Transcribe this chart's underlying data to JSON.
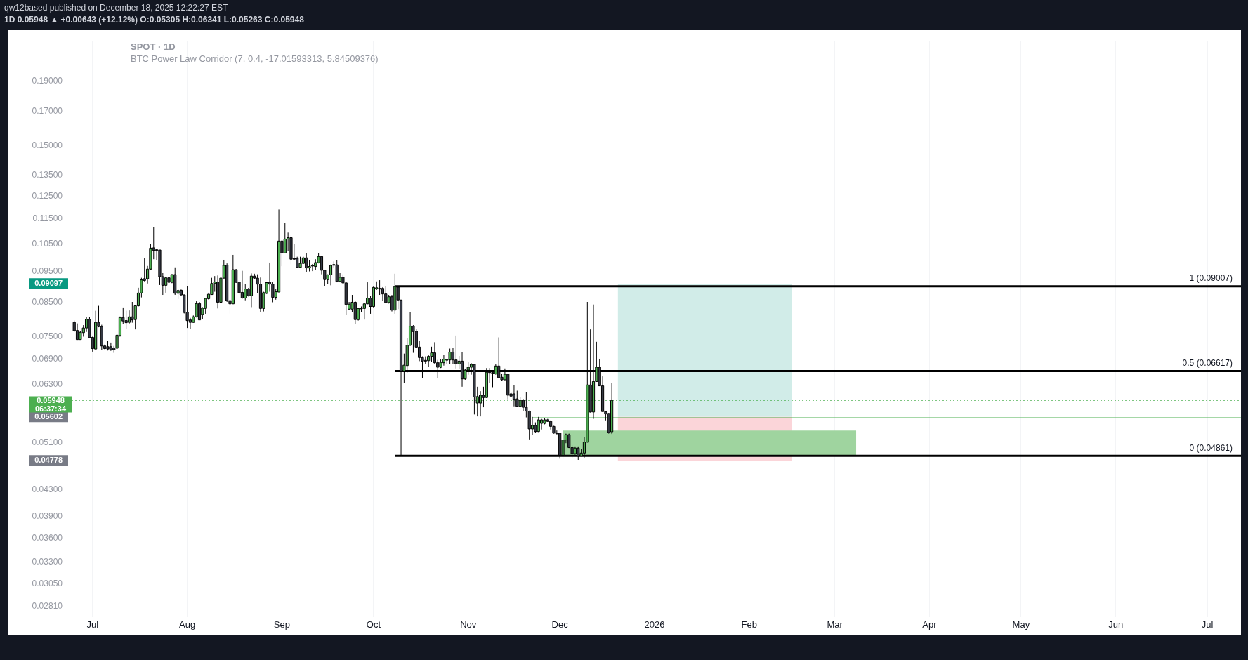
{
  "chart_data": {
    "type": "candlestick",
    "title": "qw12based published on December 18, 2025 12:22:27 EST",
    "subtitle": "1D 0.05948 ▲ +0.00643 (+12.12%) O:0.05305 H:0.06341 L:0.05263 C:0.05948",
    "x": [
      "2025-06-25",
      "2025-06-26",
      "2025-06-27",
      "2025-06-28",
      "2025-06-29",
      "2025-06-30",
      "2025-07-01",
      "2025-07-02",
      "2025-07-03",
      "2025-07-04",
      "2025-07-05",
      "2025-07-06",
      "2025-07-07",
      "2025-07-08",
      "2025-07-09",
      "2025-07-10",
      "2025-07-11",
      "2025-07-12",
      "2025-07-13",
      "2025-07-14",
      "2025-07-15",
      "2025-07-16",
      "2025-07-17",
      "2025-07-18",
      "2025-07-19",
      "2025-07-20",
      "2025-07-21",
      "2025-07-22",
      "2025-07-23",
      "2025-07-24",
      "2025-07-25",
      "2025-07-26",
      "2025-07-27",
      "2025-07-28",
      "2025-07-29",
      "2025-07-30",
      "2025-07-31",
      "2025-08-01",
      "2025-08-02",
      "2025-08-03",
      "2025-08-04",
      "2025-08-05",
      "2025-08-06",
      "2025-08-07",
      "2025-08-08",
      "2025-08-09",
      "2025-08-10",
      "2025-08-11",
      "2025-08-12",
      "2025-08-13",
      "2025-08-14",
      "2025-08-15",
      "2025-08-16",
      "2025-08-17",
      "2025-08-18",
      "2025-08-19",
      "2025-08-20",
      "2025-08-21",
      "2025-08-22",
      "2025-08-23",
      "2025-08-24",
      "2025-08-25",
      "2025-08-26",
      "2025-08-27",
      "2025-08-28",
      "2025-08-29",
      "2025-08-30",
      "2025-08-31",
      "2025-09-01",
      "2025-09-02",
      "2025-09-03",
      "2025-09-04",
      "2025-09-05",
      "2025-09-06",
      "2025-09-07",
      "2025-09-08",
      "2025-09-09",
      "2025-09-10",
      "2025-09-11",
      "2025-09-12",
      "2025-09-13",
      "2025-09-14",
      "2025-09-15",
      "2025-09-16",
      "2025-09-17",
      "2025-09-18",
      "2025-09-19",
      "2025-09-20",
      "2025-09-21",
      "2025-09-22",
      "2025-09-23",
      "2025-09-24",
      "2025-09-25",
      "2025-09-26",
      "2025-09-27",
      "2025-09-28",
      "2025-09-29",
      "2025-09-30",
      "2025-10-01",
      "2025-10-02",
      "2025-10-03",
      "2025-10-04",
      "2025-10-05",
      "2025-10-06",
      "2025-10-07",
      "2025-10-08",
      "2025-10-09",
      "2025-10-10",
      "2025-10-11",
      "2025-10-12",
      "2025-10-13",
      "2025-10-14",
      "2025-10-15",
      "2025-10-16",
      "2025-10-17",
      "2025-10-18",
      "2025-10-19",
      "2025-10-20",
      "2025-10-21",
      "2025-10-22",
      "2025-10-23",
      "2025-10-24",
      "2025-10-25",
      "2025-10-26",
      "2025-10-27",
      "2025-10-28",
      "2025-10-29",
      "2025-10-30",
      "2025-10-31",
      "2025-11-01",
      "2025-11-02",
      "2025-11-03",
      "2025-11-04",
      "2025-11-05",
      "2025-11-06",
      "2025-11-07",
      "2025-11-08",
      "2025-11-09",
      "2025-11-10",
      "2025-11-11",
      "2025-11-12",
      "2025-11-13",
      "2025-11-14",
      "2025-11-15",
      "2025-11-16",
      "2025-11-17",
      "2025-11-18",
      "2025-11-19",
      "2025-11-20",
      "2025-11-21",
      "2025-11-22",
      "2025-11-23",
      "2025-11-24",
      "2025-11-25",
      "2025-11-26",
      "2025-11-27",
      "2025-11-28",
      "2025-11-29",
      "2025-11-30",
      "2025-12-01",
      "2025-12-02",
      "2025-12-03",
      "2025-12-04",
      "2025-12-05",
      "2025-12-06",
      "2025-12-07",
      "2025-12-08",
      "2025-12-09",
      "2025-12-10",
      "2025-12-11",
      "2025-12-12",
      "2025-12-13",
      "2025-12-14",
      "2025-12-15",
      "2025-12-16",
      "2025-12-17",
      "2025-12-18"
    ],
    "ohlc": [
      [
        0.079,
        0.0795,
        0.0763,
        0.0766
      ],
      [
        0.0767,
        0.0787,
        0.0742,
        0.0742
      ],
      [
        0.0742,
        0.0766,
        0.0742,
        0.0762
      ],
      [
        0.0761,
        0.0782,
        0.075,
        0.0774
      ],
      [
        0.0774,
        0.0806,
        0.0763,
        0.0799
      ],
      [
        0.0799,
        0.0805,
        0.0746,
        0.0747
      ],
      [
        0.0748,
        0.075,
        0.071,
        0.0718
      ],
      [
        0.0717,
        0.0824,
        0.0716,
        0.079
      ],
      [
        0.079,
        0.0839,
        0.0776,
        0.0778
      ],
      [
        0.0778,
        0.0783,
        0.0715,
        0.0725
      ],
      [
        0.0725,
        0.0729,
        0.0716,
        0.0718
      ],
      [
        0.0723,
        0.0739,
        0.0713,
        0.0717
      ],
      [
        0.0723,
        0.0734,
        0.0712,
        0.0715
      ],
      [
        0.072,
        0.0725,
        0.0707,
        0.0715
      ],
      [
        0.0719,
        0.0756,
        0.0718,
        0.0754
      ],
      [
        0.0753,
        0.0807,
        0.075,
        0.0804
      ],
      [
        0.0804,
        0.0834,
        0.0785,
        0.0794
      ],
      [
        0.0795,
        0.0824,
        0.0772,
        0.0789
      ],
      [
        0.079,
        0.0825,
        0.0785,
        0.0806
      ],
      [
        0.0806,
        0.0851,
        0.0789,
        0.0797
      ],
      [
        0.0798,
        0.0839,
        0.077,
        0.0839
      ],
      [
        0.0839,
        0.0896,
        0.0837,
        0.0879
      ],
      [
        0.0879,
        0.0929,
        0.0865,
        0.0922
      ],
      [
        0.0926,
        0.0997,
        0.0917,
        0.092
      ],
      [
        0.0926,
        0.097,
        0.091,
        0.0959
      ],
      [
        0.0959,
        0.1052,
        0.0955,
        0.1035
      ],
      [
        0.1036,
        0.1117,
        0.0994,
        0.1027
      ],
      [
        0.1029,
        0.1031,
        0.099,
        0.1027
      ],
      [
        0.1028,
        0.1028,
        0.0905,
        0.0933
      ],
      [
        0.0933,
        0.0945,
        0.0873,
        0.0904
      ],
      [
        0.0904,
        0.0933,
        0.088,
        0.0929
      ],
      [
        0.0929,
        0.0931,
        0.0911,
        0.0914
      ],
      [
        0.0914,
        0.0941,
        0.0911,
        0.094
      ],
      [
        0.094,
        0.0965,
        0.0873,
        0.0878
      ],
      [
        0.0878,
        0.0893,
        0.086,
        0.0887
      ],
      [
        0.0888,
        0.089,
        0.0871,
        0.0873
      ],
      [
        0.0873,
        0.0874,
        0.0816,
        0.0819
      ],
      [
        0.082,
        0.0902,
        0.0774,
        0.0795
      ],
      [
        0.0797,
        0.0803,
        0.0772,
        0.079
      ],
      [
        0.079,
        0.081,
        0.0789,
        0.0806
      ],
      [
        0.0806,
        0.0853,
        0.0804,
        0.0846
      ],
      [
        0.0846,
        0.0851,
        0.0797,
        0.0797
      ],
      [
        0.0813,
        0.0835,
        0.08,
        0.0832
      ],
      [
        0.0831,
        0.0864,
        0.0815,
        0.0862
      ],
      [
        0.0861,
        0.088,
        0.0858,
        0.0875
      ],
      [
        0.0874,
        0.0929,
        0.0873,
        0.091
      ],
      [
        0.091,
        0.0935,
        0.0883,
        0.0915
      ],
      [
        0.0915,
        0.0937,
        0.0831,
        0.085
      ],
      [
        0.085,
        0.0931,
        0.0849,
        0.0928
      ],
      [
        0.0928,
        0.0992,
        0.0927,
        0.0972
      ],
      [
        0.0973,
        0.0979,
        0.0851,
        0.0855
      ],
      [
        0.0855,
        0.0858,
        0.0815,
        0.0845
      ],
      [
        0.0845,
        0.101,
        0.0845,
        0.0957
      ],
      [
        0.0957,
        0.0959,
        0.0912,
        0.0914
      ],
      [
        0.0915,
        0.0917,
        0.0874,
        0.088
      ],
      [
        0.0881,
        0.0953,
        0.0861,
        0.0863
      ],
      [
        0.0863,
        0.0908,
        0.0856,
        0.0892
      ],
      [
        0.0892,
        0.0895,
        0.0868,
        0.087
      ],
      [
        0.087,
        0.0944,
        0.0835,
        0.0935
      ],
      [
        0.0935,
        0.0943,
        0.0925,
        0.0928
      ],
      [
        0.0928,
        0.0941,
        0.0878,
        0.0908
      ],
      [
        0.0908,
        0.093,
        0.0821,
        0.0831
      ],
      [
        0.0831,
        0.0883,
        0.0822,
        0.088
      ],
      [
        0.0878,
        0.0916,
        0.0876,
        0.0913
      ],
      [
        0.0914,
        0.0982,
        0.0883,
        0.0908
      ],
      [
        0.0908,
        0.0914,
        0.085,
        0.0865
      ],
      [
        0.0865,
        0.0892,
        0.0858,
        0.0883
      ],
      [
        0.0882,
        0.1191,
        0.0882,
        0.1062
      ],
      [
        0.1062,
        0.1064,
        0.0969,
        0.1017
      ],
      [
        0.1017,
        0.1134,
        0.1016,
        0.107
      ],
      [
        0.107,
        0.1095,
        0.1024,
        0.1075
      ],
      [
        0.1075,
        0.1086,
        0.0976,
        0.0994
      ],
      [
        0.0997,
        0.1052,
        0.099,
        0.0994
      ],
      [
        0.0997,
        0.1003,
        0.0963,
        0.0965
      ],
      [
        0.0965,
        0.1003,
        0.0963,
        0.0979
      ],
      [
        0.0979,
        0.1003,
        0.0978,
        0.0999
      ],
      [
        0.0999,
        0.1016,
        0.0949,
        0.0963
      ],
      [
        0.0963,
        0.0992,
        0.0951,
        0.0968
      ],
      [
        0.097,
        0.0977,
        0.0952,
        0.0972
      ],
      [
        0.0968,
        0.0994,
        0.0957,
        0.0982
      ],
      [
        0.0981,
        0.1017,
        0.0979,
        0.1004
      ],
      [
        0.1004,
        0.1007,
        0.0941,
        0.0955
      ],
      [
        0.0955,
        0.0955,
        0.0902,
        0.0923
      ],
      [
        0.0923,
        0.0941,
        0.0908,
        0.0939
      ],
      [
        0.0939,
        0.0975,
        0.0904,
        0.0972
      ],
      [
        0.0973,
        0.0986,
        0.0965,
        0.0975
      ],
      [
        0.0974,
        0.099,
        0.0914,
        0.0917
      ],
      [
        0.0917,
        0.0945,
        0.0914,
        0.0931
      ],
      [
        0.0931,
        0.0941,
        0.0911,
        0.0912
      ],
      [
        0.0912,
        0.0914,
        0.0812,
        0.0843
      ],
      [
        0.0829,
        0.0851,
        0.0827,
        0.0844
      ],
      [
        0.0829,
        0.0873,
        0.0819,
        0.085
      ],
      [
        0.085,
        0.0855,
        0.0785,
        0.0798
      ],
      [
        0.0798,
        0.0833,
        0.0795,
        0.0831
      ],
      [
        0.0832,
        0.0837,
        0.0819,
        0.083
      ],
      [
        0.0831,
        0.0847,
        0.0798,
        0.0845
      ],
      [
        0.0845,
        0.0914,
        0.0844,
        0.0863
      ],
      [
        0.0863,
        0.0869,
        0.0815,
        0.0837
      ],
      [
        0.0837,
        0.0902,
        0.0833,
        0.0897
      ],
      [
        0.0892,
        0.0917,
        0.0889,
        0.0896
      ],
      [
        0.0894,
        0.0921,
        0.0873,
        0.0892
      ],
      [
        0.0894,
        0.0898,
        0.0855,
        0.0876
      ],
      [
        0.0876,
        0.0902,
        0.0847,
        0.0849
      ],
      [
        0.0849,
        0.0873,
        0.0846,
        0.0867
      ],
      [
        0.0867,
        0.0873,
        0.0822,
        0.0826
      ],
      [
        0.0826,
        0.0943,
        0.0815,
        0.09
      ],
      [
        0.0898,
        0.0898,
        0.0829,
        0.0857
      ],
      [
        0.0857,
        0.0857,
        0.0487,
        0.0662
      ],
      [
        0.0662,
        0.0705,
        0.0633,
        0.0676
      ],
      [
        0.0675,
        0.0747,
        0.0658,
        0.0727
      ],
      [
        0.0727,
        0.0821,
        0.0725,
        0.0779
      ],
      [
        0.0779,
        0.0782,
        0.0707,
        0.0764
      ],
      [
        0.0765,
        0.0772,
        0.072,
        0.0722
      ],
      [
        0.0722,
        0.0738,
        0.0686,
        0.0695
      ],
      [
        0.0695,
        0.0698,
        0.0645,
        0.0686
      ],
      [
        0.0688,
        0.0698,
        0.0678,
        0.0686
      ],
      [
        0.0687,
        0.0701,
        0.0672,
        0.0698
      ],
      [
        0.0698,
        0.0723,
        0.0684,
        0.0707
      ],
      [
        0.0707,
        0.0735,
        0.0679,
        0.0682
      ],
      [
        0.0682,
        0.0689,
        0.0645,
        0.0671
      ],
      [
        0.0671,
        0.069,
        0.0669,
        0.0683
      ],
      [
        0.0682,
        0.0701,
        0.0675,
        0.0691
      ],
      [
        0.0689,
        0.069,
        0.0679,
        0.069
      ],
      [
        0.0689,
        0.0718,
        0.0679,
        0.0709
      ],
      [
        0.0709,
        0.072,
        0.0678,
        0.0689
      ],
      [
        0.0689,
        0.0753,
        0.0668,
        0.0679
      ],
      [
        0.0679,
        0.0699,
        0.0667,
        0.0686
      ],
      [
        0.0686,
        0.0709,
        0.0625,
        0.0643
      ],
      [
        0.0643,
        0.0667,
        0.0641,
        0.0664
      ],
      [
        0.0664,
        0.0683,
        0.0653,
        0.0671
      ],
      [
        0.0671,
        0.0681,
        0.0653,
        0.0678
      ],
      [
        0.0678,
        0.0679,
        0.0565,
        0.0602
      ],
      [
        0.0589,
        0.0625,
        0.0561,
        0.0603
      ],
      [
        0.0589,
        0.0615,
        0.0561,
        0.0606
      ],
      [
        0.0606,
        0.0625,
        0.058,
        0.0601
      ],
      [
        0.0601,
        0.0669,
        0.06,
        0.0659
      ],
      [
        0.066,
        0.0669,
        0.0633,
        0.0658
      ],
      [
        0.0658,
        0.0661,
        0.0624,
        0.0657
      ],
      [
        0.0655,
        0.0678,
        0.0653,
        0.0674
      ],
      [
        0.0674,
        0.0748,
        0.0645,
        0.0646
      ],
      [
        0.0647,
        0.0655,
        0.0639,
        0.0641
      ],
      [
        0.0641,
        0.0668,
        0.064,
        0.0654
      ],
      [
        0.0654,
        0.0655,
        0.0597,
        0.0606
      ],
      [
        0.0609,
        0.0612,
        0.0604,
        0.0604
      ],
      [
        0.0609,
        0.0628,
        0.0582,
        0.0597
      ],
      [
        0.0598,
        0.0616,
        0.0581,
        0.0582
      ],
      [
        0.0582,
        0.0602,
        0.058,
        0.0595
      ],
      [
        0.0595,
        0.0598,
        0.0572,
        0.058
      ],
      [
        0.058,
        0.0613,
        0.0559,
        0.0572
      ],
      [
        0.0572,
        0.0573,
        0.0516,
        0.0536
      ],
      [
        0.0536,
        0.056,
        0.0524,
        0.0543
      ],
      [
        0.0543,
        0.0549,
        0.0529,
        0.0531
      ],
      [
        0.0531,
        0.056,
        0.053,
        0.0554
      ],
      [
        0.0547,
        0.0556,
        0.0535,
        0.0554
      ],
      [
        0.0547,
        0.0558,
        0.0545,
        0.0554
      ],
      [
        0.0554,
        0.0556,
        0.055,
        0.0551
      ],
      [
        0.0551,
        0.0553,
        0.0535,
        0.0541
      ],
      [
        0.0541,
        0.0542,
        0.0527,
        0.0528
      ],
      [
        0.0528,
        0.0533,
        0.0526,
        0.0527
      ],
      [
        0.0528,
        0.0529,
        0.0481,
        0.0487
      ],
      [
        0.0487,
        0.0516,
        0.048,
        0.0515
      ],
      [
        0.0515,
        0.0527,
        0.0509,
        0.0525
      ],
      [
        0.0525,
        0.0527,
        0.05,
        0.0501
      ],
      [
        0.0501,
        0.0505,
        0.0483,
        0.049
      ],
      [
        0.049,
        0.0503,
        0.0488,
        0.05
      ],
      [
        0.05,
        0.0503,
        0.0479,
        0.0486
      ],
      [
        0.0486,
        0.0498,
        0.0485,
        0.0491
      ],
      [
        0.0491,
        0.052,
        0.0483,
        0.0511
      ],
      [
        0.0511,
        0.0851,
        0.051,
        0.0629
      ],
      [
        0.0629,
        0.077,
        0.0569,
        0.057
      ],
      [
        0.057,
        0.0843,
        0.0556,
        0.0637
      ],
      [
        0.0637,
        0.0736,
        0.0636,
        0.0671
      ],
      [
        0.0671,
        0.0692,
        0.0627,
        0.0627
      ],
      [
        0.0627,
        0.0649,
        0.0571,
        0.0571
      ],
      [
        0.0571,
        0.0572,
        0.0553,
        0.0566
      ],
      [
        0.0567,
        0.0568,
        0.0527,
        0.0529
      ],
      [
        0.05305,
        0.06341,
        0.05263,
        0.05948
      ]
    ],
    "xlim": [
      "2025-06-23",
      "2026-07-12"
    ],
    "xticks": [
      {
        "value": "2025-07-01",
        "label": "Jul"
      },
      {
        "value": "2025-08-01",
        "label": "Aug"
      },
      {
        "value": "2025-09-01",
        "label": "Sep"
      },
      {
        "value": "2025-10-01",
        "label": "Oct"
      },
      {
        "value": "2025-11-01",
        "label": "Nov"
      },
      {
        "value": "2025-12-01",
        "label": "Dec"
      },
      {
        "value": "2026-01-01",
        "label": "2026"
      },
      {
        "value": "2026-02-01",
        "label": "Feb"
      },
      {
        "value": "2026-03-01",
        "label": "Mar"
      },
      {
        "value": "2026-04-01",
        "label": "Apr"
      },
      {
        "value": "2026-05-01",
        "label": "May"
      },
      {
        "value": "2026-06-01",
        "label": "Jun"
      },
      {
        "value": "2026-07-01",
        "label": "Jul"
      }
    ],
    "ylim": [
      0.027,
      0.22
    ],
    "yticks": [
      {
        "value": 0.19,
        "label": "0.19000"
      },
      {
        "value": 0.17,
        "label": "0.17000"
      },
      {
        "value": 0.15,
        "label": "0.15000"
      },
      {
        "value": 0.135,
        "label": "0.13500"
      },
      {
        "value": 0.125,
        "label": "0.12500"
      },
      {
        "value": 0.115,
        "label": "0.11500"
      },
      {
        "value": 0.105,
        "label": "0.10500"
      },
      {
        "value": 0.095,
        "label": "0.09500"
      },
      {
        "value": 0.09097,
        "label": "0.09097"
      },
      {
        "value": 0.085,
        "label": "0.08500"
      },
      {
        "value": 0.075,
        "label": "0.07500"
      },
      {
        "value": 0.069,
        "label": "0.06900"
      },
      {
        "value": 0.063,
        "label": "0.06300"
      },
      {
        "value": 0.05602,
        "label": "0.05602"
      },
      {
        "value": 0.051,
        "label": "0.05100"
      },
      {
        "value": 0.04778,
        "label": "0.04778"
      },
      {
        "value": 0.043,
        "label": "0.04300"
      },
      {
        "value": 0.039,
        "label": "0.03900"
      },
      {
        "value": 0.036,
        "label": "0.03600"
      },
      {
        "value": 0.033,
        "label": "0.03300"
      },
      {
        "value": 0.0305,
        "label": "0.03050"
      },
      {
        "value": 0.0281,
        "label": "0.02810"
      }
    ],
    "log": true,
    "grid": "x",
    "series": [
      {
        "type": "area",
        "color": "#d1ece8",
        "x": [
          "2025-12-20",
          "2025-12-20",
          "2026-02-15",
          "2026-02-15"
        ],
        "values": [
          0.05602,
          0.09097,
          0.09097,
          0.05602
        ]
      },
      {
        "type": "area",
        "color": "#fbd5d9",
        "x": [
          "2025-12-20",
          "2025-12-20",
          "2026-02-15",
          "2026-02-15"
        ],
        "values": [
          0.04778,
          0.05602,
          0.05602,
          0.04778
        ]
      },
      {
        "type": "area",
        "color": "#9fd49f",
        "x": [
          "2025-12-02",
          "2025-12-02",
          "2026-03-08",
          "2026-03-08"
        ],
        "values": [
          0.0486,
          0.0533,
          0.0533,
          0.0486
        ]
      },
      {
        "type": "line",
        "color": "#4caf50",
        "x": [
          "2025-11-22",
          "2026-07-12"
        ],
        "values": [
          0.0558,
          0.0558
        ]
      },
      {
        "type": "line",
        "name": "1 (0.09007)",
        "color": "#000000",
        "x": [
          "2025-10-08",
          "2026-07-12"
        ],
        "values": [
          0.09007,
          0.09007
        ]
      },
      {
        "type": "line",
        "name": "0.5 (0.06617)",
        "color": "#000000",
        "x": [
          "2025-10-08",
          "2026-07-12"
        ],
        "values": [
          0.06617,
          0.06617
        ]
      },
      {
        "type": "line",
        "name": "0 (0.04861)",
        "color": "#000000",
        "x": [
          "2025-10-08",
          "2026-07-12"
        ],
        "values": [
          0.04861,
          0.04861
        ]
      }
    ],
    "ref_lines": [
      {
        "axis": "y",
        "value": 0.05948,
        "label": "0.05948\n06:37:34",
        "color": "#4caf50",
        "line_style": "dotted"
      }
    ],
    "annotations": [
      "SPOT · 1D",
      "BTC Power Law Corridor (7, 0.4, -17.01593313, 5.84509376)"
    ]
  }
}
